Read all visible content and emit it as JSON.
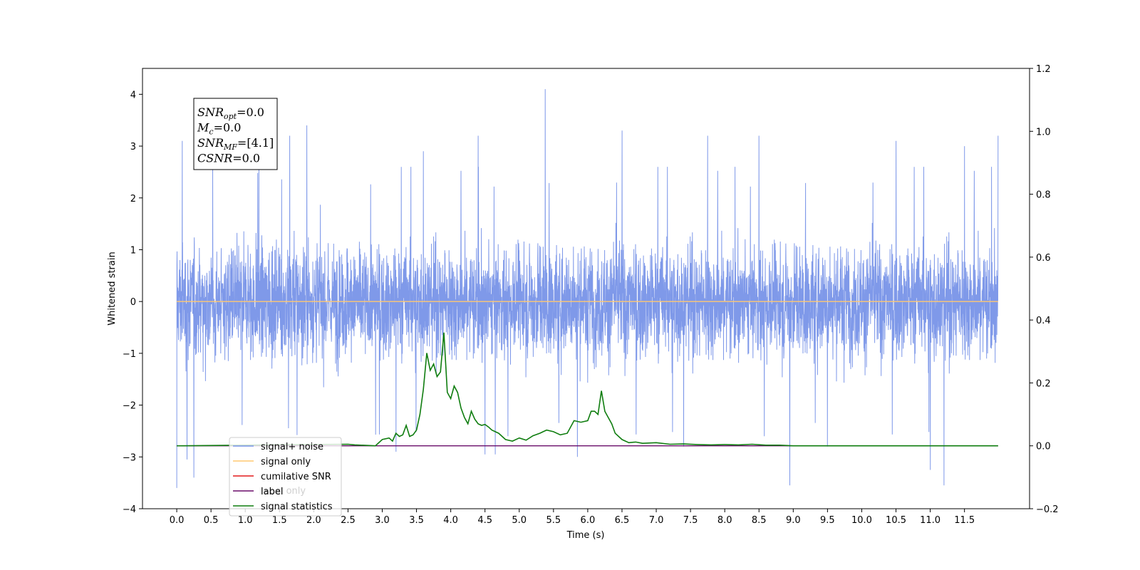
{
  "chart_data": {
    "type": "line",
    "xlabel": "Time (s)",
    "ylabel": "Whitened strain",
    "xlim": [
      -0.5,
      12.45
    ],
    "ylim": [
      -4,
      4.5
    ],
    "ylim_right": [
      -0.2,
      1.2
    ],
    "x_ticks": [
      "0.0",
      "0.5",
      "1.0",
      "1.5",
      "2.0",
      "2.5",
      "3.0",
      "3.5",
      "4.0",
      "4.5",
      "5.0",
      "5.5",
      "6.0",
      "6.5",
      "7.0",
      "7.5",
      "8.0",
      "8.5",
      "9.0",
      "9.5",
      "10.0",
      "10.5",
      "11.0",
      "11.5"
    ],
    "y_ticks": [
      "−4",
      "−3",
      "−2",
      "−1",
      "0",
      "1",
      "2",
      "3",
      "4"
    ],
    "y_ticks_right": [
      "−0.2",
      "0.0",
      "0.2",
      "0.4",
      "0.6",
      "0.8",
      "1.0",
      "1.2"
    ],
    "grid": false,
    "legend_placement": "lower-left",
    "legend": [
      {
        "label": "signal+ noise",
        "color": "#7893e8"
      },
      {
        "label": "signal only",
        "color": "#ffc870"
      },
      {
        "label": "cumilative SNR",
        "color": "#e31a1c"
      },
      {
        "label": "label",
        "color": "#6a0d6a"
      },
      {
        "label": "signal statistics",
        "color": "#0f7d0f"
      }
    ],
    "legend_ghost_text": "label only",
    "info_box": {
      "lines": [
        {
          "main": "SNR",
          "sub": "opt",
          "rest": "=0.0"
        },
        {
          "main": "M",
          "sub": "c",
          "rest": "=0.0"
        },
        {
          "main": "SNR",
          "sub": "MF",
          "rest": "=[4.1]"
        },
        {
          "main": "CSNR",
          "sub": "",
          "rest": "=0.0"
        }
      ]
    },
    "series": [
      {
        "name": "signal+ noise",
        "axis": "left",
        "color": "#7893e8",
        "x_start": 0.0,
        "x_end": 11.99,
        "typical_range": [
          -1.6,
          1.6
        ],
        "peaks": [
          {
            "x": 0.0,
            "y": -3.6
          },
          {
            "x": 0.08,
            "y": 3.1
          },
          {
            "x": 0.15,
            "y": -3.05
          },
          {
            "x": 0.25,
            "y": -3.4
          },
          {
            "x": 1.2,
            "y": 2.7
          },
          {
            "x": 1.65,
            "y": 3.2
          },
          {
            "x": 1.9,
            "y": 3.4
          },
          {
            "x": 3.2,
            "y": -2.9
          },
          {
            "x": 3.6,
            "y": 2.9
          },
          {
            "x": 4.4,
            "y": 3.2
          },
          {
            "x": 4.5,
            "y": -2.95
          },
          {
            "x": 4.65,
            "y": -2.95
          },
          {
            "x": 5.38,
            "y": 4.1
          },
          {
            "x": 5.85,
            "y": -3.0
          },
          {
            "x": 6.5,
            "y": 3.3
          },
          {
            "x": 7.4,
            "y": -2.8
          },
          {
            "x": 7.75,
            "y": 3.2
          },
          {
            "x": 8.5,
            "y": 3.2
          },
          {
            "x": 8.95,
            "y": -3.55
          },
          {
            "x": 9.5,
            "y": -2.8
          },
          {
            "x": 10.5,
            "y": 3.1
          },
          {
            "x": 11.0,
            "y": -3.25
          },
          {
            "x": 11.2,
            "y": -3.55
          },
          {
            "x": 11.5,
            "y": 3.0
          },
          {
            "x": 11.99,
            "y": 3.2
          }
        ]
      },
      {
        "name": "signal only",
        "axis": "left",
        "color": "#ffc870",
        "x": [
          0.0,
          11.99
        ],
        "values": [
          0.0,
          0.0
        ]
      },
      {
        "name": "label",
        "axis": "right",
        "color": "#6a0d6a",
        "x": [
          0.0,
          11.99
        ],
        "values": [
          0.0,
          0.0
        ]
      },
      {
        "name": "signal statistics",
        "axis": "right",
        "color": "#0f7d0f",
        "x": [
          0.0,
          2.5,
          2.6,
          2.9,
          3.0,
          3.1,
          3.15,
          3.2,
          3.25,
          3.3,
          3.35,
          3.4,
          3.45,
          3.5,
          3.55,
          3.6,
          3.65,
          3.7,
          3.75,
          3.8,
          3.85,
          3.9,
          3.95,
          4.0,
          4.05,
          4.1,
          4.15,
          4.2,
          4.25,
          4.3,
          4.35,
          4.4,
          4.45,
          4.5,
          4.55,
          4.6,
          4.7,
          4.8,
          4.9,
          5.0,
          5.1,
          5.2,
          5.3,
          5.4,
          5.5,
          5.6,
          5.7,
          5.8,
          5.9,
          6.0,
          6.05,
          6.1,
          6.15,
          6.2,
          6.25,
          6.3,
          6.35,
          6.4,
          6.5,
          6.6,
          6.7,
          6.8,
          7.0,
          7.2,
          7.4,
          7.6,
          7.8,
          8.0,
          8.2,
          8.4,
          8.6,
          8.8,
          9.0,
          9.5,
          10.0,
          11.0,
          11.99
        ],
        "values": [
          0.0,
          0.005,
          0.003,
          0.0,
          0.02,
          0.025,
          0.015,
          0.04,
          0.03,
          0.035,
          0.065,
          0.03,
          0.035,
          0.05,
          0.1,
          0.18,
          0.295,
          0.24,
          0.26,
          0.22,
          0.235,
          0.36,
          0.17,
          0.15,
          0.19,
          0.17,
          0.12,
          0.09,
          0.07,
          0.11,
          0.085,
          0.07,
          0.065,
          0.068,
          0.06,
          0.05,
          0.04,
          0.02,
          0.015,
          0.025,
          0.018,
          0.032,
          0.04,
          0.05,
          0.045,
          0.035,
          0.04,
          0.08,
          0.075,
          0.08,
          0.11,
          0.11,
          0.1,
          0.175,
          0.11,
          0.09,
          0.07,
          0.04,
          0.02,
          0.01,
          0.012,
          0.008,
          0.01,
          0.005,
          0.006,
          0.004,
          0.003,
          0.004,
          0.003,
          0.005,
          0.002,
          0.002,
          0.0,
          0.0,
          0.0,
          0.0,
          0.0
        ]
      }
    ]
  }
}
